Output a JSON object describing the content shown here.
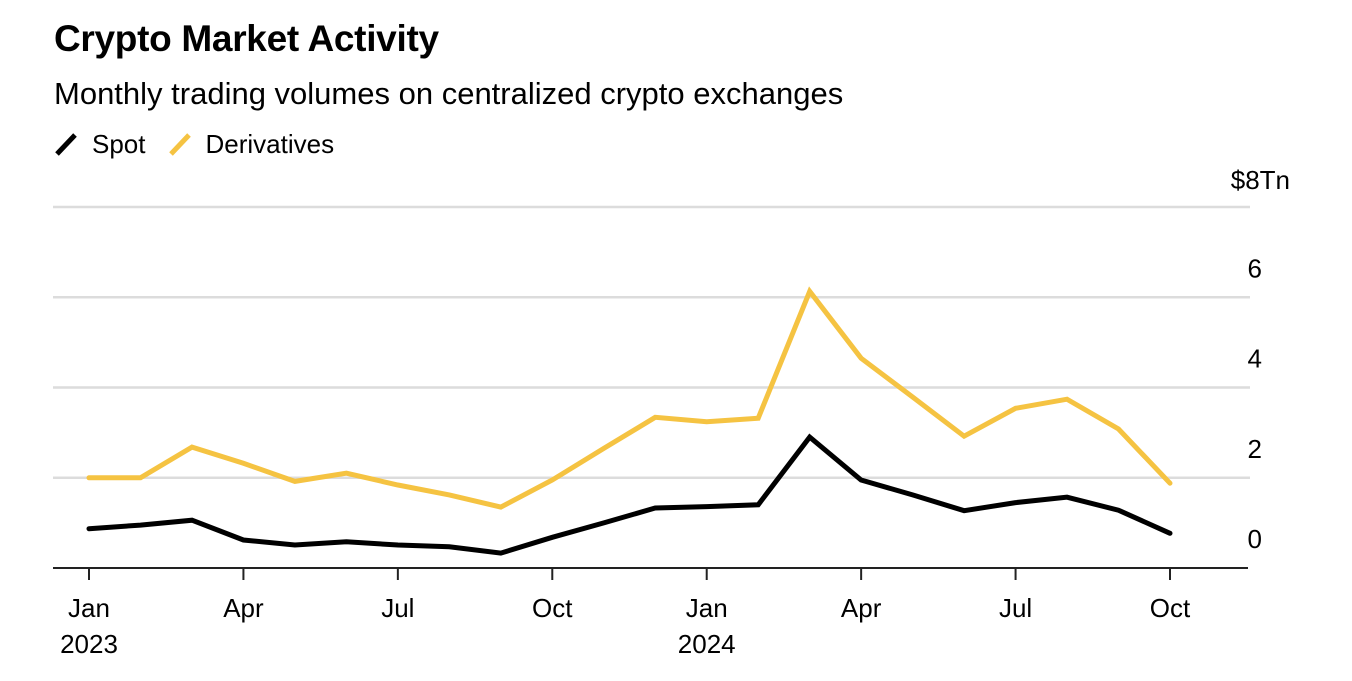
{
  "header": {
    "title": "Crypto Market Activity",
    "subtitle": "Monthly trading volumes on centralized crypto exchanges"
  },
  "chart_data": {
    "type": "line",
    "title": "Crypto Market Activity",
    "subtitle": "Monthly trading volumes on centralized crypto exchanges",
    "xlabel": "",
    "ylabel": "",
    "y_unit_label": "$8Tn",
    "ylim": [
      0,
      8
    ],
    "yticks": [
      0,
      2,
      4,
      6,
      8
    ],
    "ytick_labels": [
      "0",
      "2",
      "4",
      "6",
      "$8Tn"
    ],
    "grid": true,
    "legend_position": "top-left",
    "x": [
      "2023-01",
      "2023-02",
      "2023-03",
      "2023-04",
      "2023-05",
      "2023-06",
      "2023-07",
      "2023-08",
      "2023-09",
      "2023-10",
      "2023-11",
      "2023-12",
      "2024-01",
      "2024-02",
      "2024-03",
      "2024-04",
      "2024-05",
      "2024-06",
      "2024-07",
      "2024-08",
      "2024-09",
      "2024-10"
    ],
    "xticks": [
      {
        "index": 0,
        "month": "Jan",
        "year": "2023"
      },
      {
        "index": 3,
        "month": "Apr",
        "year": ""
      },
      {
        "index": 6,
        "month": "Jul",
        "year": ""
      },
      {
        "index": 9,
        "month": "Oct",
        "year": ""
      },
      {
        "index": 12,
        "month": "Jan",
        "year": "2024"
      },
      {
        "index": 15,
        "month": "Apr",
        "year": ""
      },
      {
        "index": 18,
        "month": "Jul",
        "year": ""
      },
      {
        "index": 21,
        "month": "Oct",
        "year": ""
      }
    ],
    "series": [
      {
        "name": "Spot",
        "color": "#000000",
        "values": [
          0.87,
          0.95,
          1.06,
          0.62,
          0.51,
          0.58,
          0.51,
          0.47,
          0.33,
          0.68,
          1.0,
          1.33,
          1.36,
          1.4,
          2.9,
          1.95,
          1.62,
          1.27,
          1.45,
          1.57,
          1.28,
          0.77
        ]
      },
      {
        "name": "Derivatives",
        "color": "#F5C342",
        "values": [
          2.0,
          2.0,
          2.68,
          2.32,
          1.92,
          2.1,
          1.84,
          1.62,
          1.35,
          1.95,
          2.65,
          3.34,
          3.24,
          3.32,
          6.13,
          4.65,
          3.79,
          2.92,
          3.54,
          3.74,
          3.08,
          1.88
        ]
      }
    ]
  }
}
